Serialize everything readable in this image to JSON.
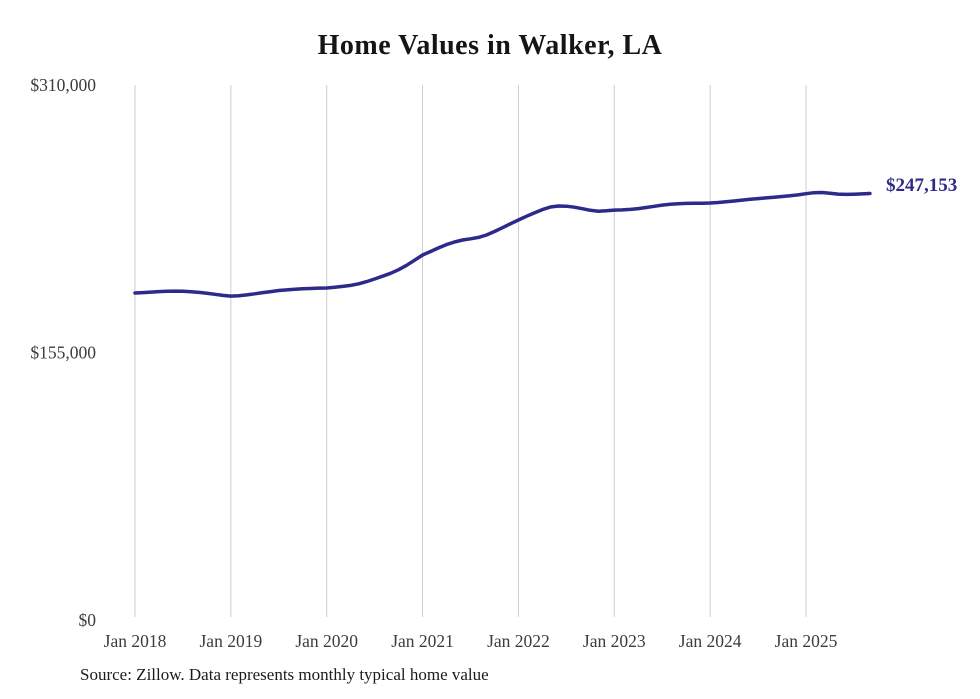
{
  "chart_data": {
    "type": "line",
    "title": "Home Values in Walker, LA",
    "series_name": "Typical home value",
    "x_start": "2018-01",
    "x_end": "2025-09",
    "x_tick_labels": [
      "Jan 2018",
      "Jan 2019",
      "Jan 2020",
      "Jan 2021",
      "Jan 2022",
      "Jan 2023",
      "Jan 2024",
      "Jan 2025"
    ],
    "y_ticks": [
      {
        "value": 0,
        "label": "$0"
      },
      {
        "value": 155000,
        "label": "$155,000"
      },
      {
        "value": 310000,
        "label": "$310,000"
      }
    ],
    "ylim": [
      0,
      310000
    ],
    "grid": "vertical-only",
    "legend": "none",
    "monthly_values": [
      189500,
      189700,
      190000,
      190300,
      190500,
      190600,
      190500,
      190200,
      189800,
      189300,
      188700,
      188100,
      187700,
      187900,
      188400,
      189000,
      189700,
      190300,
      190900,
      191300,
      191600,
      191900,
      192100,
      192300,
      192400,
      192800,
      193300,
      193900,
      194800,
      196100,
      197600,
      199200,
      200900,
      203000,
      205500,
      208500,
      211500,
      213500,
      215600,
      217500,
      219000,
      220200,
      220900,
      221700,
      223100,
      225100,
      227300,
      229600,
      231800,
      233900,
      235900,
      237800,
      239300,
      239900,
      239800,
      239200,
      238300,
      237400,
      236900,
      237100,
      237500,
      237600,
      237900,
      238400,
      239000,
      239700,
      240400,
      240900,
      241200,
      241400,
      241500,
      241500,
      241600,
      241900,
      242300,
      242800,
      243300,
      243800,
      244200,
      244600,
      245000,
      245400,
      245800,
      246300,
      247000,
      247600,
      247700,
      247300,
      246800,
      246600,
      246700,
      246900,
      247153
    ],
    "end_value": 247153,
    "end_label": "$247,153",
    "line_color": "#2d2a8c",
    "grid_color": "#cccccc",
    "tick_label_color": "#3c3c3c",
    "source_note": "Source: Zillow. Data represents monthly typical home value"
  }
}
